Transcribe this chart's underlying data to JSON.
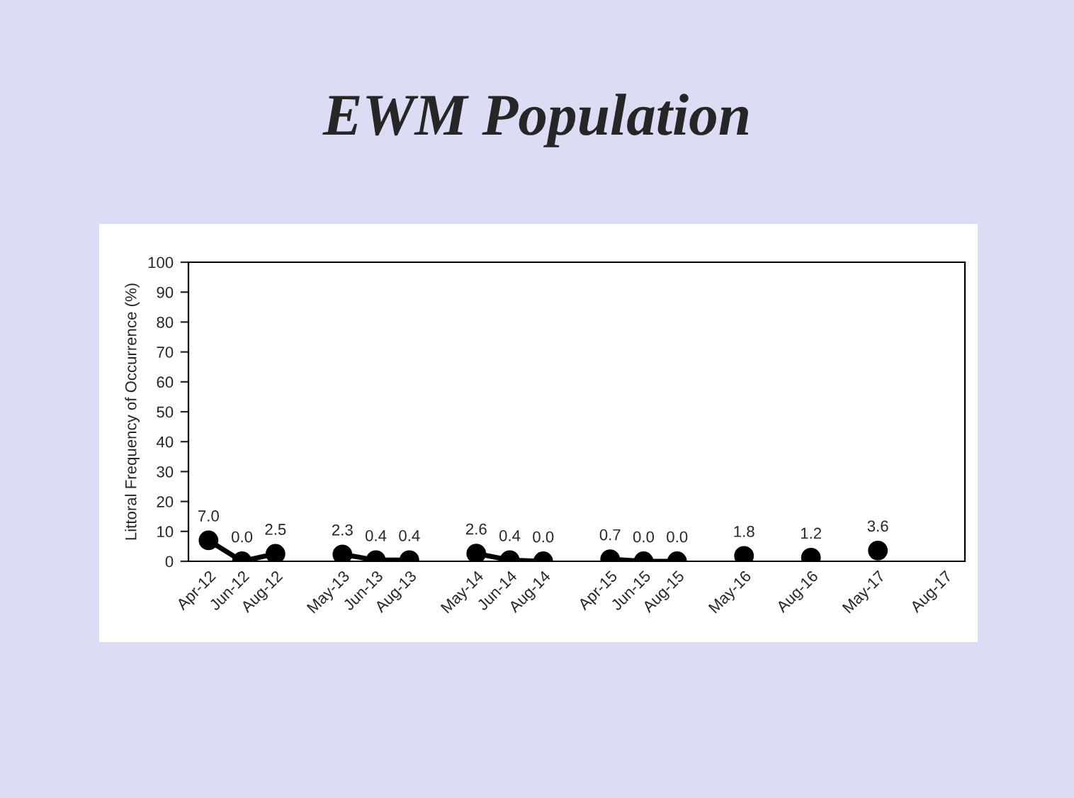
{
  "chart_data": {
    "type": "line",
    "title": "EWM Population",
    "ylabel": "Littoral Frequency of Occurrence (%)",
    "categories": [
      "Apr-12",
      "Jun-12",
      "Aug-12",
      null,
      "May-13",
      "Jun-13",
      "Aug-13",
      null,
      "May-14",
      "Jun-14",
      "Aug-14",
      null,
      "Apr-15",
      "Jun-15",
      "Aug-15",
      null,
      "May-16",
      null,
      "Aug-16",
      null,
      "May-17",
      null,
      "Aug-17"
    ],
    "series": [
      {
        "color": "#000000",
        "values": [
          7.0,
          0.0,
          2.5,
          null,
          2.3,
          0.4,
          0.4,
          null,
          2.6,
          0.4,
          0.0,
          null,
          0.7,
          0.0,
          0.0,
          null,
          1.8,
          null,
          1.2,
          null,
          3.6,
          null,
          null
        ],
        "value_labels": [
          "7.0",
          "0.0",
          "2.5",
          null,
          "2.3",
          "0.4",
          "0.4",
          null,
          "2.6",
          "0.4",
          "0.0",
          null,
          "0.7",
          "0.0",
          "0.0",
          null,
          "1.8",
          null,
          "1.2",
          null,
          "3.6",
          null,
          null
        ]
      }
    ],
    "ylim": [
      0,
      100
    ],
    "yticks": [
      0,
      10,
      20,
      30,
      40,
      50,
      60,
      70,
      80,
      90,
      100
    ],
    "grid": false,
    "legend": false,
    "marker": "circle",
    "line_style": "solid"
  }
}
